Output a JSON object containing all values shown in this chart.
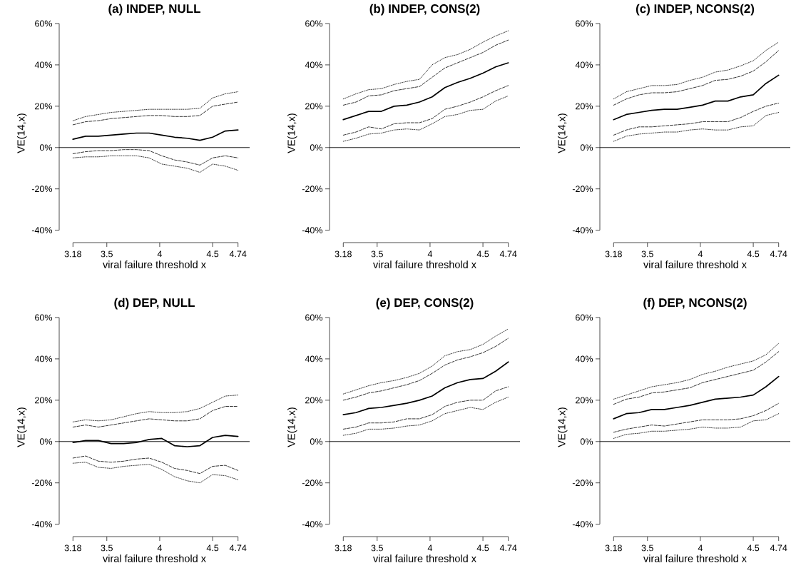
{
  "chart_data": [
    {
      "type": "line",
      "title": "(a) INDEP, NULL",
      "xlabel": "viral failure threshold x",
      "ylabel": "VE(14,x)",
      "marker": "none",
      "x": [
        3.18,
        3.3,
        3.42,
        3.54,
        3.66,
        3.78,
        3.9,
        4.02,
        4.14,
        4.26,
        4.38,
        4.5,
        4.62,
        4.74
      ],
      "xlim": [
        3.05,
        4.85
      ],
      "ylim": [
        -46,
        60
      ],
      "xticks": [
        3.18,
        3.5,
        4,
        4.5,
        4.74
      ],
      "yticks": [
        {
          "value": -40,
          "label": "-40%"
        },
        {
          "value": -20,
          "label": "-20%"
        },
        {
          "value": 0,
          "label": "0%"
        },
        {
          "value": 20,
          "label": "20%"
        },
        {
          "value": 40,
          "label": "40%"
        },
        {
          "value": 60,
          "label": "60%"
        }
      ],
      "ref_lines": [
        {
          "axis": "y",
          "value": 0,
          "color": "#000000"
        }
      ],
      "series": [
        {
          "color": "#000000",
          "line_style": "solid",
          "values": [
            4,
            5.5,
            5.5,
            6,
            6.5,
            7,
            7,
            6,
            5,
            4.5,
            3.5,
            5,
            8,
            8.5
          ]
        },
        {
          "color": "#000000",
          "line_style": "dashed",
          "values": [
            11,
            12.5,
            13,
            14,
            14.5,
            15,
            15.5,
            15.5,
            15,
            15,
            15.5,
            20,
            21,
            22
          ]
        },
        {
          "color": "#000000",
          "line_style": "dotted",
          "values": [
            13,
            15,
            16,
            17,
            17.5,
            18,
            18.5,
            18.5,
            18.5,
            18.5,
            19,
            24,
            26,
            27
          ]
        },
        {
          "color": "#000000",
          "line_style": "dashed",
          "values": [
            -3,
            -2,
            -1.5,
            -1.5,
            -1,
            -1,
            -1.5,
            -4,
            -6,
            -7,
            -8.5,
            -5,
            -4,
            -5
          ]
        },
        {
          "color": "#000000",
          "line_style": "dotted",
          "values": [
            -5,
            -4.5,
            -4.5,
            -4,
            -4,
            -4,
            -5,
            -8,
            -9,
            -10,
            -12,
            -8,
            -9,
            -11
          ]
        }
      ]
    },
    {
      "type": "line",
      "title": "(b) INDEP, CONS(2)",
      "xlabel": "viral failure threshold x",
      "ylabel": "VE(14,x)",
      "marker": "none",
      "x": [
        3.18,
        3.3,
        3.42,
        3.54,
        3.66,
        3.78,
        3.9,
        4.02,
        4.14,
        4.26,
        4.38,
        4.5,
        4.62,
        4.74
      ],
      "xlim": [
        3.05,
        4.85
      ],
      "ylim": [
        -46,
        60
      ],
      "xticks": [
        3.18,
        3.5,
        4,
        4.5,
        4.74
      ],
      "yticks": [
        {
          "value": -40,
          "label": "-40%"
        },
        {
          "value": -20,
          "label": "-20%"
        },
        {
          "value": 0,
          "label": "0%"
        },
        {
          "value": 20,
          "label": "20%"
        },
        {
          "value": 40,
          "label": "40%"
        },
        {
          "value": 60,
          "label": "60%"
        }
      ],
      "ref_lines": [
        {
          "axis": "y",
          "value": 0,
          "color": "#000000"
        }
      ],
      "series": [
        {
          "color": "#000000",
          "line_style": "solid",
          "values": [
            13.5,
            15.5,
            17.5,
            17.5,
            20,
            20.5,
            22,
            24.5,
            29,
            31.5,
            33.5,
            36,
            39,
            41
          ]
        },
        {
          "color": "#000000",
          "line_style": "dashed",
          "values": [
            20.5,
            22,
            25,
            25.5,
            27.5,
            28.5,
            29.5,
            34,
            38.5,
            41,
            43.5,
            46,
            49.5,
            52
          ]
        },
        {
          "color": "#000000",
          "line_style": "dotted",
          "values": [
            23.5,
            26,
            28,
            28.5,
            30.5,
            32,
            33,
            40,
            43.5,
            45,
            47.5,
            51,
            54,
            56.5
          ]
        },
        {
          "color": "#000000",
          "line_style": "dashed",
          "values": [
            6,
            7.5,
            10,
            9,
            11.5,
            12,
            12,
            14,
            18.5,
            20,
            22,
            24.5,
            27.5,
            30
          ]
        },
        {
          "color": "#000000",
          "line_style": "dotted",
          "values": [
            3,
            4.5,
            6.5,
            7,
            8.5,
            9,
            8.5,
            11.5,
            15,
            16,
            18,
            18.5,
            22.5,
            25
          ]
        }
      ]
    },
    {
      "type": "line",
      "title": "(c) INDEP, NCONS(2)",
      "xlabel": "viral failure threshold x",
      "ylabel": "VE(14,x)",
      "marker": "none",
      "x": [
        3.18,
        3.3,
        3.42,
        3.54,
        3.66,
        3.78,
        3.9,
        4.02,
        4.14,
        4.26,
        4.38,
        4.5,
        4.62,
        4.74
      ],
      "xlim": [
        3.05,
        4.85
      ],
      "ylim": [
        -46,
        60
      ],
      "xticks": [
        3.18,
        3.5,
        4,
        4.5,
        4.74
      ],
      "yticks": [
        {
          "value": -40,
          "label": "-40%"
        },
        {
          "value": -20,
          "label": "-20%"
        },
        {
          "value": 0,
          "label": "0%"
        },
        {
          "value": 20,
          "label": "20%"
        },
        {
          "value": 40,
          "label": "40%"
        },
        {
          "value": 60,
          "label": "60%"
        }
      ],
      "ref_lines": [
        {
          "axis": "y",
          "value": 0,
          "color": "#000000"
        }
      ],
      "series": [
        {
          "color": "#000000",
          "line_style": "solid",
          "values": [
            13.5,
            16,
            17,
            18,
            18.5,
            18.5,
            19.5,
            20.5,
            22.5,
            22.5,
            24.5,
            25.5,
            31,
            35
          ]
        },
        {
          "color": "#000000",
          "line_style": "dashed",
          "values": [
            20.5,
            23.5,
            25.5,
            26.5,
            26.5,
            27,
            28.5,
            30,
            32.5,
            33,
            34.5,
            37,
            41.5,
            47
          ]
        },
        {
          "color": "#000000",
          "line_style": "dotted",
          "values": [
            23.5,
            27,
            28.5,
            30,
            30,
            30.5,
            32.5,
            34,
            36.5,
            37.5,
            39.5,
            42,
            47,
            51
          ]
        },
        {
          "color": "#000000",
          "line_style": "dashed",
          "values": [
            6,
            8.5,
            10,
            10,
            10.5,
            11,
            11.5,
            12.5,
            12.5,
            12.5,
            14.5,
            17.5,
            20,
            21.5
          ]
        },
        {
          "color": "#000000",
          "line_style": "dotted",
          "values": [
            3,
            5.5,
            6.5,
            7,
            7.5,
            7.5,
            8.5,
            9,
            8.5,
            8.5,
            10,
            10.5,
            15.5,
            17
          ]
        }
      ]
    },
    {
      "type": "line",
      "title": "(d) DEP, NULL",
      "xlabel": "viral failure threshold x",
      "ylabel": "VE(14,x)",
      "marker": "none",
      "x": [
        3.18,
        3.3,
        3.42,
        3.54,
        3.66,
        3.78,
        3.9,
        4.02,
        4.14,
        4.26,
        4.38,
        4.5,
        4.62,
        4.74
      ],
      "xlim": [
        3.05,
        4.85
      ],
      "ylim": [
        -46,
        60
      ],
      "xticks": [
        3.18,
        3.5,
        4,
        4.5,
        4.74
      ],
      "yticks": [
        {
          "value": -40,
          "label": "-40%"
        },
        {
          "value": -20,
          "label": "-20%"
        },
        {
          "value": 0,
          "label": "0%"
        },
        {
          "value": 20,
          "label": "20%"
        },
        {
          "value": 40,
          "label": "40%"
        },
        {
          "value": 60,
          "label": "60%"
        }
      ],
      "ref_lines": [
        {
          "axis": "y",
          "value": 0,
          "color": "#000000"
        }
      ],
      "series": [
        {
          "color": "#000000",
          "line_style": "solid",
          "values": [
            -0.5,
            0.5,
            0.5,
            -1,
            -1,
            -0.5,
            1,
            1.5,
            -2,
            -2.5,
            -2,
            2,
            3,
            2.5
          ]
        },
        {
          "color": "#000000",
          "line_style": "dashed",
          "values": [
            7,
            8,
            7,
            8,
            9,
            10,
            11,
            10.5,
            10,
            10,
            11,
            15,
            17,
            17
          ]
        },
        {
          "color": "#000000",
          "line_style": "dotted",
          "values": [
            9.5,
            10.5,
            10,
            10.5,
            12,
            13.5,
            14.5,
            14,
            14,
            14.5,
            16,
            19,
            22,
            22.5
          ]
        },
        {
          "color": "#000000",
          "line_style": "dashed",
          "values": [
            -8,
            -7,
            -9.5,
            -10,
            -9.5,
            -8.5,
            -8,
            -10,
            -13,
            -14,
            -15.5,
            -12,
            -11.5,
            -14
          ]
        },
        {
          "color": "#000000",
          "line_style": "dotted",
          "values": [
            -10.5,
            -10,
            -12.5,
            -13,
            -12,
            -11.5,
            -11,
            -13.5,
            -17,
            -19,
            -20,
            -16,
            -16.5,
            -18.5
          ]
        }
      ]
    },
    {
      "type": "line",
      "title": "(e) DEP, CONS(2)",
      "xlabel": "viral failure threshold x",
      "ylabel": "VE(14,x)",
      "marker": "none",
      "x": [
        3.18,
        3.3,
        3.42,
        3.54,
        3.66,
        3.78,
        3.9,
        4.02,
        4.14,
        4.26,
        4.38,
        4.5,
        4.62,
        4.74
      ],
      "xlim": [
        3.05,
        4.85
      ],
      "ylim": [
        -46,
        60
      ],
      "xticks": [
        3.18,
        3.5,
        4,
        4.5,
        4.74
      ],
      "yticks": [
        {
          "value": -40,
          "label": "-40%"
        },
        {
          "value": -20,
          "label": "-20%"
        },
        {
          "value": 0,
          "label": "0%"
        },
        {
          "value": 20,
          "label": "20%"
        },
        {
          "value": 40,
          "label": "40%"
        },
        {
          "value": 60,
          "label": "60%"
        }
      ],
      "ref_lines": [
        {
          "axis": "y",
          "value": 0,
          "color": "#000000"
        }
      ],
      "series": [
        {
          "color": "#000000",
          "line_style": "solid",
          "values": [
            13,
            14,
            16,
            16.5,
            17.5,
            18.5,
            20,
            22,
            26,
            28.5,
            30,
            30.5,
            34,
            38.5
          ]
        },
        {
          "color": "#000000",
          "line_style": "dashed",
          "values": [
            20,
            21.5,
            23.5,
            24.5,
            26,
            27.5,
            29.5,
            33,
            37,
            39.5,
            41,
            43,
            46,
            50
          ]
        },
        {
          "color": "#000000",
          "line_style": "dotted",
          "values": [
            23,
            25,
            27,
            28.5,
            29.5,
            31,
            33,
            36.5,
            41.5,
            43.5,
            44.5,
            47,
            51,
            54.5
          ]
        },
        {
          "color": "#000000",
          "line_style": "dashed",
          "values": [
            6,
            7,
            9,
            9,
            9.5,
            11,
            11,
            13,
            17,
            19,
            20,
            20,
            24.5,
            26.5
          ]
        },
        {
          "color": "#000000",
          "line_style": "dotted",
          "values": [
            3,
            4,
            6,
            6,
            6.5,
            7.5,
            8,
            10,
            13.5,
            15,
            16.5,
            15.5,
            19,
            21.5
          ]
        }
      ]
    },
    {
      "type": "line",
      "title": "(f) DEP, NCONS(2)",
      "xlabel": "viral failure threshold x",
      "ylabel": "VE(14,x)",
      "marker": "none",
      "x": [
        3.18,
        3.3,
        3.42,
        3.54,
        3.66,
        3.78,
        3.9,
        4.02,
        4.14,
        4.26,
        4.38,
        4.5,
        4.62,
        4.74
      ],
      "xlim": [
        3.05,
        4.85
      ],
      "ylim": [
        -46,
        60
      ],
      "xticks": [
        3.18,
        3.5,
        4,
        4.5,
        4.74
      ],
      "yticks": [
        {
          "value": -40,
          "label": "-40%"
        },
        {
          "value": -20,
          "label": "-20%"
        },
        {
          "value": 0,
          "label": "0%"
        },
        {
          "value": 20,
          "label": "20%"
        },
        {
          "value": 40,
          "label": "40%"
        },
        {
          "value": 60,
          "label": "60%"
        }
      ],
      "ref_lines": [
        {
          "axis": "y",
          "value": 0,
          "color": "#000000"
        }
      ],
      "series": [
        {
          "color": "#000000",
          "line_style": "solid",
          "values": [
            11,
            13.5,
            14,
            15.5,
            15.5,
            16.5,
            17.5,
            19,
            20.5,
            21,
            21.5,
            22.5,
            26.5,
            31.5
          ]
        },
        {
          "color": "#000000",
          "line_style": "dashed",
          "values": [
            18,
            20.5,
            21.5,
            23.5,
            24,
            25,
            26,
            28.5,
            30,
            31.5,
            33,
            34.5,
            38.5,
            43.5
          ]
        },
        {
          "color": "#000000",
          "line_style": "dotted",
          "values": [
            20.5,
            22.5,
            24.5,
            26.5,
            27.5,
            28.5,
            30,
            32.5,
            34,
            36,
            37.5,
            39,
            42,
            47.5
          ]
        },
        {
          "color": "#000000",
          "line_style": "dashed",
          "values": [
            4.5,
            6,
            7,
            8,
            7.5,
            8.5,
            9.5,
            10.5,
            10.5,
            10.5,
            11,
            12.5,
            15,
            18.5
          ]
        },
        {
          "color": "#000000",
          "line_style": "dotted",
          "values": [
            1.5,
            3.5,
            4,
            5,
            5,
            5.5,
            6,
            7,
            6.5,
            6.5,
            7,
            10,
            10.5,
            13.5
          ]
        }
      ]
    }
  ]
}
